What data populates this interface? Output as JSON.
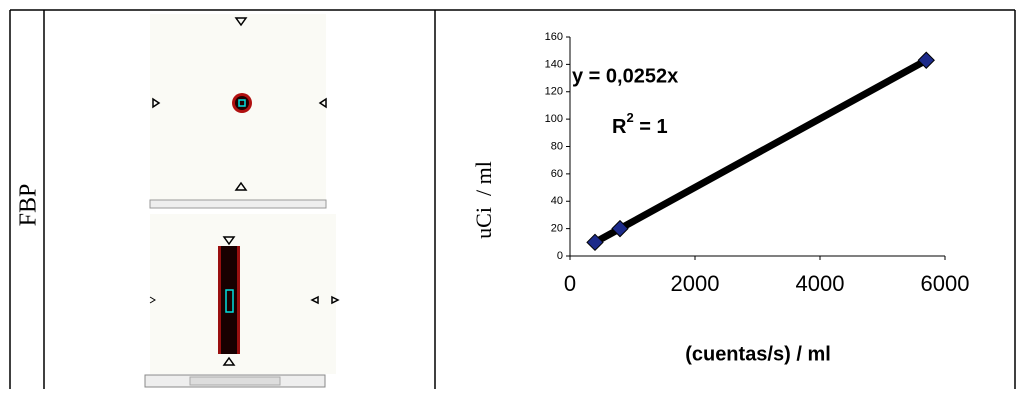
{
  "table": {
    "row_label": "FBP"
  },
  "chart_data": {
    "type": "scatter",
    "x_label": "(cuentas/s) / ml",
    "y_label": "uCi  / ml",
    "annotations": [
      "y = 0,0252x"
    ],
    "r_squared": {
      "base": "R",
      "sup": "2",
      "rest": " = 1"
    },
    "x": [
      400,
      800,
      5700
    ],
    "series": [
      {
        "color": "#1c2a8a",
        "line_color": "#000000",
        "values": [
          10,
          20,
          143
        ]
      }
    ],
    "xlim": [
      0,
      6000
    ],
    "xticks": [
      0,
      2000,
      4000,
      6000
    ],
    "ylim": [
      0,
      160
    ],
    "yticks": [
      0,
      20,
      40,
      60,
      80,
      100,
      120,
      140,
      160
    ]
  }
}
